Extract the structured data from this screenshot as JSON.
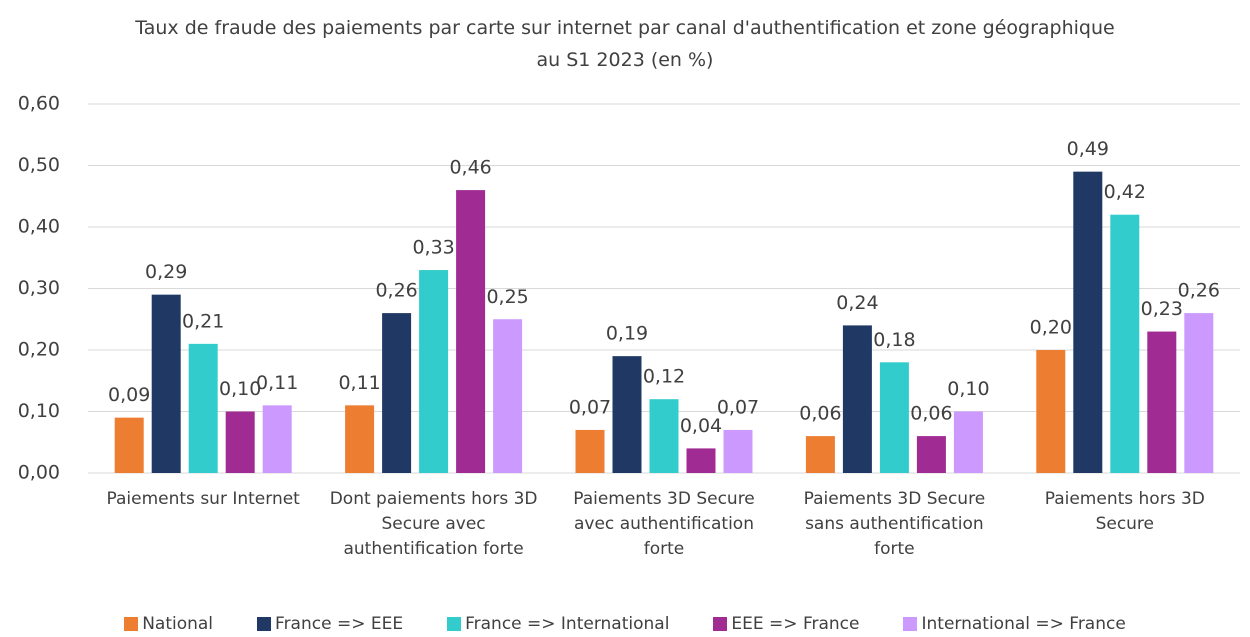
{
  "chart_data": {
    "type": "bar",
    "title": "Taux de fraude des paiements par carte sur internet par canal d'authentification et zone géographique au S1 2023 (en %)",
    "categories": [
      "Paiements sur Internet",
      "Dont paiements hors 3D Secure avec authentification forte",
      "Paiements 3D Secure avec authentification forte",
      "Paiements 3D Secure sans authentification forte",
      "Paiements hors 3D Secure"
    ],
    "series": [
      {
        "name": "National",
        "color": "#ed7d31",
        "values": [
          0.09,
          0.11,
          0.07,
          0.06,
          0.2
        ],
        "value_labels": [
          "0,09",
          "0,11",
          "0,07",
          "0,06",
          "0,20"
        ]
      },
      {
        "name": "France => EEE",
        "color": "#203864",
        "values": [
          0.29,
          0.26,
          0.19,
          0.24,
          0.49
        ],
        "value_labels": [
          "0,29",
          "0,26",
          "0,19",
          "0,24",
          "0,49"
        ]
      },
      {
        "name": "France => International",
        "color": "#33cccc",
        "values": [
          0.21,
          0.33,
          0.12,
          0.18,
          0.42
        ],
        "value_labels": [
          "0,21",
          "0,33",
          "0,12",
          "0,18",
          "0,42"
        ]
      },
      {
        "name": "EEE => France",
        "color": "#a02b93",
        "values": [
          0.1,
          0.46,
          0.04,
          0.06,
          0.23
        ],
        "value_labels": [
          "0,10",
          "0,46",
          "0,04",
          "0,06",
          "0,23"
        ]
      },
      {
        "name": "International => France",
        "color": "#cc99ff",
        "values": [
          0.11,
          0.25,
          0.07,
          0.1,
          0.26
        ],
        "value_labels": [
          "0,11",
          "0,25",
          "0,07",
          "0,10",
          "0,26"
        ]
      }
    ],
    "ylim": [
      0,
      0.6
    ],
    "yticks": [
      {
        "value": 0,
        "label": "0,00"
      },
      {
        "value": 0.1,
        "label": "0,10"
      },
      {
        "value": 0.2,
        "label": "0,20"
      },
      {
        "value": 0.3,
        "label": "0,30"
      },
      {
        "value": 0.4,
        "label": "0,40"
      },
      {
        "value": 0.5,
        "label": "0,50"
      },
      {
        "value": 0.6,
        "label": "0,60"
      }
    ],
    "grid": true,
    "legend": "bottom"
  }
}
